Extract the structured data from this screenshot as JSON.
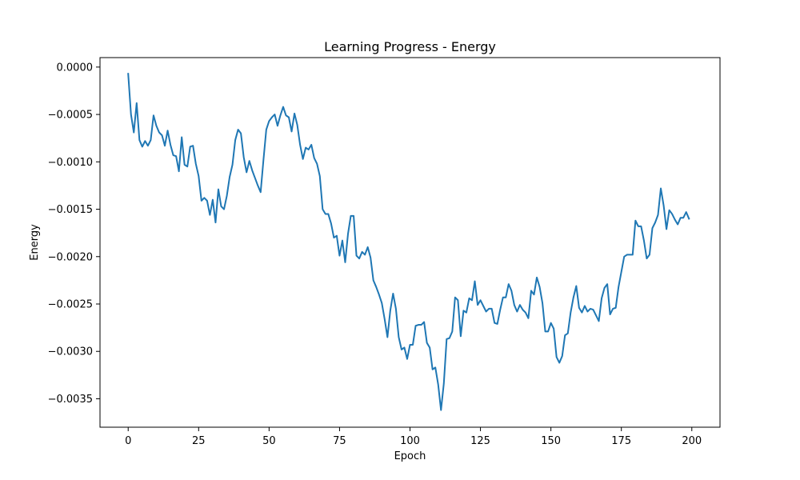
{
  "chart_data": {
    "type": "line",
    "title": "Learning Progress - Energy",
    "xlabel": "Epoch",
    "ylabel": "Energy",
    "xlim": [
      -10,
      210
    ],
    "ylim": [
      -0.0038,
      0.0001
    ],
    "xticks": [
      0,
      25,
      50,
      75,
      100,
      125,
      150,
      175,
      200
    ],
    "xtick_labels": [
      "0",
      "25",
      "50",
      "75",
      "100",
      "125",
      "150",
      "175",
      "200"
    ],
    "yticks": [
      0,
      -0.0005,
      -0.001,
      -0.0015,
      -0.002,
      -0.0025,
      -0.003,
      -0.0035
    ],
    "ytick_labels": [
      "0.0000",
      "−0.0005",
      "−0.0010",
      "−0.0015",
      "−0.0020",
      "−0.0025",
      "−0.0030",
      "−0.0035"
    ],
    "grid": false,
    "series": [
      {
        "color": "#1f77b4",
        "x_start": 0,
        "x_step": 1,
        "values": [
          -7e-05,
          -0.0005,
          -0.00069,
          -0.00038,
          -0.00077,
          -0.00084,
          -0.00078,
          -0.00083,
          -0.00077,
          -0.00051,
          -0.00062,
          -0.00069,
          -0.00072,
          -0.00083,
          -0.00067,
          -0.00082,
          -0.00093,
          -0.00094,
          -0.0011,
          -0.00074,
          -0.00103,
          -0.00105,
          -0.00084,
          -0.00083,
          -0.00102,
          -0.00115,
          -0.00141,
          -0.00138,
          -0.00141,
          -0.00156,
          -0.0014,
          -0.00164,
          -0.00129,
          -0.00147,
          -0.0015,
          -0.00136,
          -0.00116,
          -0.00103,
          -0.00077,
          -0.00066,
          -0.0007,
          -0.00095,
          -0.00111,
          -0.00099,
          -0.00109,
          -0.00117,
          -0.00125,
          -0.00132,
          -0.00098,
          -0.00066,
          -0.00057,
          -0.00053,
          -0.0005,
          -0.00062,
          -0.00051,
          -0.00042,
          -0.00051,
          -0.00053,
          -0.00068,
          -0.00049,
          -0.00061,
          -0.00082,
          -0.00097,
          -0.00085,
          -0.00087,
          -0.00082,
          -0.00096,
          -0.00102,
          -0.00115,
          -0.0015,
          -0.00155,
          -0.00155,
          -0.00165,
          -0.0018,
          -0.00178,
          -0.00199,
          -0.00183,
          -0.00206,
          -0.00176,
          -0.00157,
          -0.00157,
          -0.00199,
          -0.00202,
          -0.00195,
          -0.00198,
          -0.0019,
          -0.00201,
          -0.00225,
          -0.00232,
          -0.0024,
          -0.00249,
          -0.00266,
          -0.00285,
          -0.00257,
          -0.00239,
          -0.00255,
          -0.00285,
          -0.00298,
          -0.00296,
          -0.00308,
          -0.00293,
          -0.00293,
          -0.00273,
          -0.00272,
          -0.00272,
          -0.00269,
          -0.00291,
          -0.00296,
          -0.00319,
          -0.00317,
          -0.00335,
          -0.00362,
          -0.00334,
          -0.00287,
          -0.00286,
          -0.00279,
          -0.00243,
          -0.00246,
          -0.00284,
          -0.00257,
          -0.00259,
          -0.00244,
          -0.00246,
          -0.00226,
          -0.00251,
          -0.00246,
          -0.00252,
          -0.00258,
          -0.00255,
          -0.00255,
          -0.0027,
          -0.00271,
          -0.00256,
          -0.00243,
          -0.00243,
          -0.00229,
          -0.00236,
          -0.00251,
          -0.00258,
          -0.00251,
          -0.00256,
          -0.00259,
          -0.00265,
          -0.00236,
          -0.0024,
          -0.00222,
          -0.00232,
          -0.00249,
          -0.00279,
          -0.00279,
          -0.0027,
          -0.00276,
          -0.00306,
          -0.00312,
          -0.00305,
          -0.00283,
          -0.00281,
          -0.00259,
          -0.00243,
          -0.00231,
          -0.00254,
          -0.00259,
          -0.00252,
          -0.00258,
          -0.00255,
          -0.00256,
          -0.00262,
          -0.00268,
          -0.00244,
          -0.00233,
          -0.00229,
          -0.00261,
          -0.00255,
          -0.00254,
          -0.00232,
          -0.00216,
          -0.002,
          -0.00198,
          -0.00198,
          -0.00198,
          -0.00162,
          -0.00168,
          -0.00168,
          -0.00183,
          -0.00202,
          -0.00198,
          -0.0017,
          -0.00164,
          -0.00156,
          -0.00128,
          -0.00146,
          -0.00171,
          -0.00151,
          -0.00155,
          -0.00161,
          -0.00166,
          -0.00159,
          -0.00159,
          -0.00153,
          -0.0016
        ]
      }
    ]
  }
}
